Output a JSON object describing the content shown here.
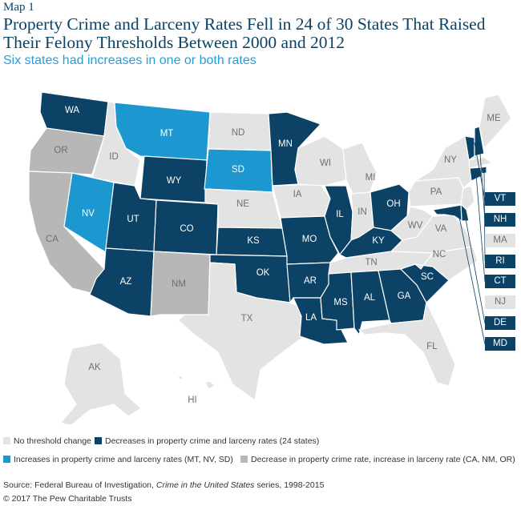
{
  "header": {
    "kicker": "Map 1",
    "title": "Property Crime and Larceny Rates Fell in 24 of 30 States That Raised Their Felony Thresholds Between 2000 and 2012",
    "subtitle": "Six states had increases in one or both rates"
  },
  "colors": {
    "decrease": "#0b4265",
    "increase": "#1c97cf",
    "mixed": "#b7b7b7",
    "no_change": "#e3e3e3"
  },
  "states": {
    "WA": "WA",
    "OR": "OR",
    "CA": "CA",
    "ID": "ID",
    "NV": "NV",
    "MT": "MT",
    "WY": "WY",
    "UT": "UT",
    "AZ": "AZ",
    "CO": "CO",
    "NM": "NM",
    "ND": "ND",
    "SD": "SD",
    "NE": "NE",
    "KS": "KS",
    "OK": "OK",
    "TX": "TX",
    "MN": "MN",
    "IA": "IA",
    "MO": "MO",
    "AR": "AR",
    "LA": "LA",
    "WI": "WI",
    "IL": "IL",
    "MS": "MS",
    "MI": "MI",
    "IN": "IN",
    "KY": "KY",
    "TN": "TN",
    "AL": "AL",
    "OH": "OH",
    "GA": "GA",
    "FL": "FL",
    "SC": "SC",
    "NC": "NC",
    "VA": "VA",
    "WV": "WV",
    "PA": "PA",
    "NY": "NY",
    "ME": "ME",
    "AK": "AK",
    "HI": "HI"
  },
  "northeast_tags": [
    "VT",
    "NH",
    "MA",
    "RI",
    "CT",
    "NJ",
    "DE",
    "MD"
  ],
  "legend": {
    "no_change": "No threshold change",
    "decrease": "Decreases in property crime and larceny rates (24 states)",
    "increase": "Increases in property crime and larceny rates (MT, NV, SD)",
    "mixed": "Decrease in property crime rate, increase in larceny rate (CA, NM, OR)"
  },
  "footer": {
    "source_prefix": "Source: Federal Bureau of Investigation, ",
    "source_title": "Crime in the United States",
    "source_suffix": " series, 1998-2015",
    "copyright": "© 2017 The Pew Charitable Trusts"
  }
}
